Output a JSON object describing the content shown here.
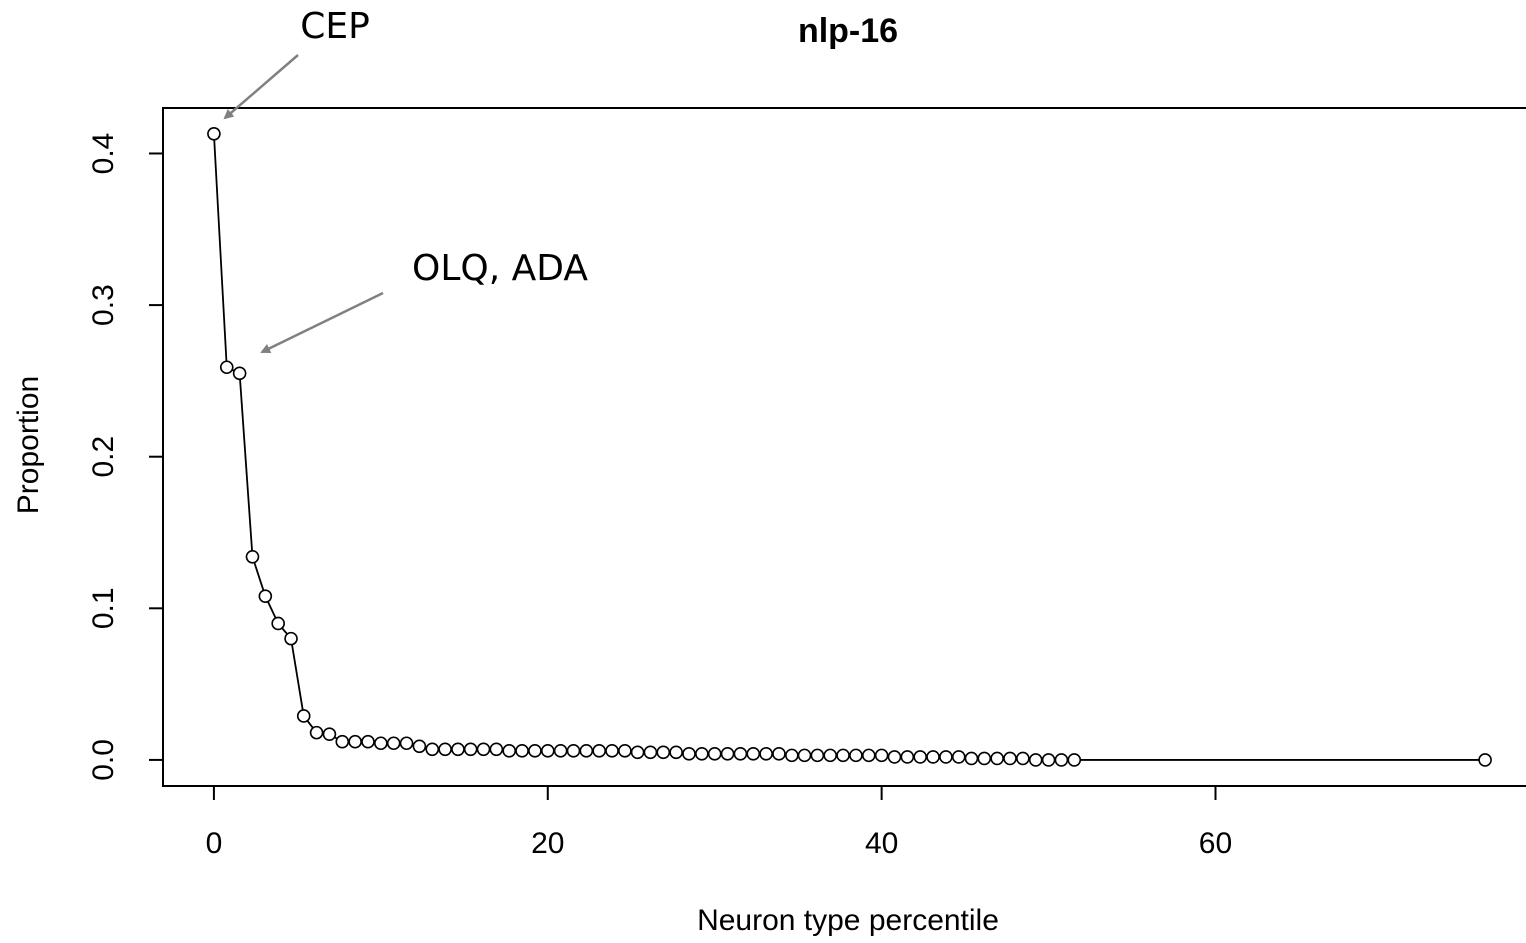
{
  "chart_data": {
    "type": "line",
    "title": "nlp-16",
    "x_label": "Neuron type percentile",
    "y_label": "Proportion",
    "annotations": [
      "CEP",
      "OLQ, ADA"
    ],
    "color": "#000000",
    "x": [
      0,
      0.77,
      1.54,
      2.31,
      3.08,
      3.85,
      4.62,
      5.38,
      6.15,
      6.92,
      7.69,
      8.46,
      9.23,
      10,
      10.77,
      11.54,
      12.31,
      13.08,
      13.85,
      14.62,
      15.38,
      16.15,
      16.92,
      17.69,
      18.46,
      19.23,
      20,
      20.77,
      21.54,
      22.31,
      23.08,
      23.85,
      24.62,
      25.38,
      26.15,
      26.92,
      27.69,
      28.46,
      29.23,
      30,
      30.77,
      31.54,
      32.31,
      33.08,
      33.85,
      34.62,
      35.38,
      36.15,
      36.92,
      37.69,
      38.46,
      39.23,
      40,
      40.77,
      41.54,
      42.31,
      43.08,
      43.85,
      44.62,
      45.38,
      46.15,
      46.92,
      47.69,
      48.46,
      49.23,
      50,
      50.77,
      51.54,
      76.15
    ],
    "values": [
      0.413,
      0.259,
      0.255,
      0.134,
      0.108,
      0.09,
      0.08,
      0.029,
      0.018,
      0.017,
      0.012,
      0.012,
      0.012,
      0.011,
      0.011,
      0.011,
      0.009,
      0.007,
      0.007,
      0.007,
      0.007,
      0.007,
      0.007,
      0.006,
      0.006,
      0.006,
      0.006,
      0.006,
      0.006,
      0.006,
      0.006,
      0.006,
      0.006,
      0.005,
      0.005,
      0.005,
      0.005,
      0.004,
      0.004,
      0.004,
      0.004,
      0.004,
      0.004,
      0.004,
      0.004,
      0.003,
      0.003,
      0.003,
      0.003,
      0.003,
      0.003,
      0.003,
      0.003,
      0.002,
      0.002,
      0.002,
      0.002,
      0.002,
      0.002,
      0.001,
      0.001,
      0.001,
      0.001,
      0.001,
      0,
      0,
      0,
      0,
      0
    ],
    "xlim": [
      -3.05,
      79.2
    ],
    "ylim": [
      -0.0172,
      0.43
    ],
    "xticks": [
      0,
      20,
      40,
      60
    ],
    "yticks": [
      {
        "value": 0,
        "label": "0.0"
      },
      0.1,
      0.2,
      0.3,
      0.4
    ]
  }
}
